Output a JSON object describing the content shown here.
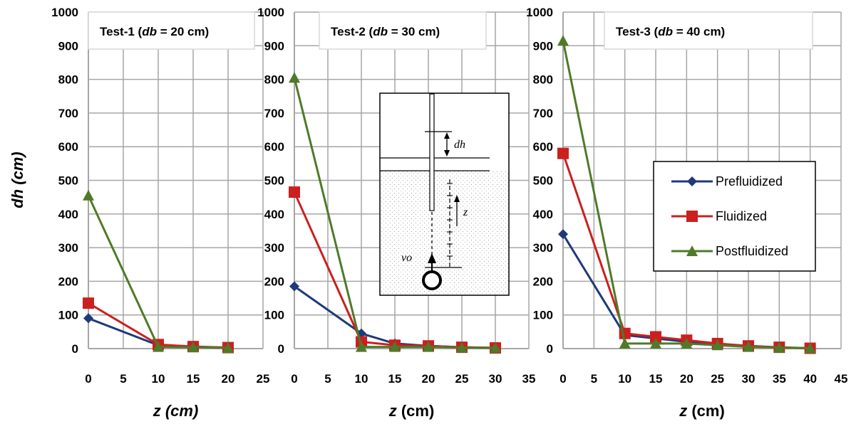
{
  "chart_data": [
    {
      "type": "line",
      "title": "Test-1 (db = 20 cm)",
      "title_parts": {
        "pre": "Test-1 (",
        "var": "db",
        "post": " = 20 cm)"
      },
      "xlabel": "z (cm)",
      "ylabel": "dh (cm)",
      "xlim": [
        0,
        25
      ],
      "ylim": [
        0,
        1000
      ],
      "x_ticks": [
        "0",
        "5",
        "10",
        "15",
        "20",
        "25"
      ],
      "y_ticks": [
        "0",
        "100",
        "200",
        "300",
        "400",
        "500",
        "600",
        "700",
        "800",
        "900",
        "1000"
      ],
      "grid": true,
      "series": [
        {
          "name": "Prefluidized",
          "x": [
            0,
            10,
            15,
            20
          ],
          "y": [
            90,
            10,
            5,
            3
          ]
        },
        {
          "name": "Fluidized",
          "x": [
            0,
            10,
            15,
            20
          ],
          "y": [
            135,
            12,
            6,
            3
          ]
        },
        {
          "name": "Postfluidized",
          "x": [
            0,
            10,
            15,
            20
          ],
          "y": [
            455,
            5,
            4,
            2
          ]
        }
      ]
    },
    {
      "type": "line",
      "title": "Test-2 (db = 30 cm)",
      "title_parts": {
        "pre": "Test-2 (",
        "var": "db",
        "post": " = 30 cm)"
      },
      "xlabel": "z (cm)",
      "xlim": [
        0,
        35
      ],
      "ylim": [
        0,
        1000
      ],
      "x_ticks": [
        "0",
        "5",
        "10",
        "15",
        "20",
        "25",
        "30",
        "35"
      ],
      "y_ticks": [
        "0",
        "100",
        "200",
        "300",
        "400",
        "500",
        "600",
        "700",
        "800",
        "900",
        "1000"
      ],
      "grid": true,
      "series": [
        {
          "name": "Prefluidized",
          "x": [
            0,
            10,
            15,
            20,
            25,
            30
          ],
          "y": [
            185,
            45,
            15,
            8,
            4,
            2
          ]
        },
        {
          "name": "Fluidized",
          "x": [
            0,
            10,
            15,
            20,
            25,
            30
          ],
          "y": [
            465,
            20,
            10,
            8,
            4,
            2
          ]
        },
        {
          "name": "Postfluidized",
          "x": [
            0,
            10,
            15,
            20,
            25,
            30
          ],
          "y": [
            805,
            5,
            5,
            5,
            3,
            2
          ]
        }
      ]
    },
    {
      "type": "line",
      "title": "Test-3 (db = 40 cm)",
      "title_parts": {
        "pre": "Test-3 (",
        "var": "db",
        "post": " = 40 cm)"
      },
      "xlabel": "z (cm)",
      "xlim": [
        0,
        45
      ],
      "ylim": [
        0,
        1000
      ],
      "x_ticks": [
        "0",
        "5",
        "10",
        "15",
        "20",
        "25",
        "30",
        "35",
        "40",
        "45"
      ],
      "y_ticks": [
        "0",
        "100",
        "200",
        "300",
        "400",
        "500",
        "600",
        "700",
        "800",
        "900",
        "1000"
      ],
      "grid": true,
      "legend": {
        "placement": "right",
        "entries": [
          "Prefluidized",
          "Fluidized",
          "Postfluidized"
        ]
      },
      "series": [
        {
          "name": "Prefluidized",
          "x": [
            0,
            10,
            15,
            20,
            25,
            30,
            35,
            40
          ],
          "y": [
            340,
            40,
            30,
            20,
            12,
            8,
            3,
            1
          ]
        },
        {
          "name": "Fluidized",
          "x": [
            0,
            10,
            15,
            20,
            25,
            30,
            35,
            40
          ],
          "y": [
            580,
            45,
            35,
            25,
            15,
            8,
            4,
            1
          ]
        },
        {
          "name": "Postfluidized",
          "x": [
            0,
            10,
            15,
            20,
            25,
            30,
            35,
            40
          ],
          "y": [
            915,
            15,
            15,
            15,
            10,
            5,
            3,
            1
          ]
        }
      ]
    }
  ],
  "series_styles": {
    "Prefluidized": {
      "color": "#1f3a7a",
      "marker": "diamond"
    },
    "Fluidized": {
      "color": "#cc1f1f",
      "marker": "square"
    },
    "Postfluidized": {
      "color": "#4f7a28",
      "marker": "triangle"
    }
  },
  "inset": {
    "label_dh": "dh",
    "label_z": "z",
    "label_vo": "vo"
  }
}
